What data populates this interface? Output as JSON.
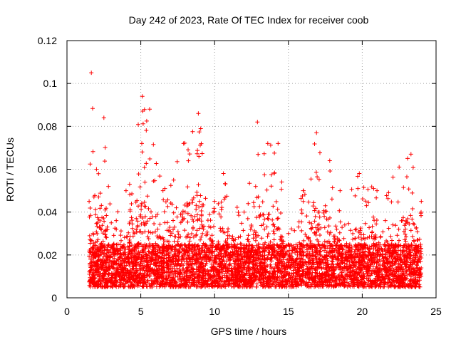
{
  "chart_data": {
    "type": "scatter",
    "title": "Day 242 of 2023, Rate Of TEC Index for receiver coob",
    "xlabel": "GPS time / hours",
    "ylabel": "ROTI / TECUs",
    "xlim": [
      0,
      25
    ],
    "ylim": [
      0,
      0.12
    ],
    "x_ticks": [
      0,
      5,
      10,
      15,
      20,
      25
    ],
    "x_tick_labels": [
      "0",
      "5",
      "10",
      "15",
      "20",
      "25"
    ],
    "y_ticks": [
      0,
      0.02,
      0.04,
      0.06,
      0.08,
      0.1,
      0.12
    ],
    "y_tick_labels": [
      "0",
      "0.02",
      "0.04",
      "0.06",
      "0.08",
      "0.1",
      "0.12"
    ],
    "grid": true,
    "marker": "plus",
    "marker_color": "#ff0000",
    "data_x_range": [
      1.5,
      24.0
    ],
    "baseline_band": [
      0.005,
      0.025
    ],
    "envelope": [
      {
        "x": 1.5,
        "y": 0.045
      },
      {
        "x": 1.65,
        "y": 0.105
      },
      {
        "x": 2.0,
        "y": 0.06
      },
      {
        "x": 2.5,
        "y": 0.084
      },
      {
        "x": 3.0,
        "y": 0.035
      },
      {
        "x": 4.0,
        "y": 0.05
      },
      {
        "x": 5.1,
        "y": 0.094
      },
      {
        "x": 5.6,
        "y": 0.088
      },
      {
        "x": 6.5,
        "y": 0.05
      },
      {
        "x": 7.9,
        "y": 0.072
      },
      {
        "x": 8.9,
        "y": 0.086
      },
      {
        "x": 10.0,
        "y": 0.045
      },
      {
        "x": 10.6,
        "y": 0.058
      },
      {
        "x": 12.0,
        "y": 0.04
      },
      {
        "x": 12.9,
        "y": 0.082
      },
      {
        "x": 13.6,
        "y": 0.072
      },
      {
        "x": 14.3,
        "y": 0.072
      },
      {
        "x": 15.0,
        "y": 0.03
      },
      {
        "x": 16.0,
        "y": 0.05
      },
      {
        "x": 16.9,
        "y": 0.077
      },
      {
        "x": 17.8,
        "y": 0.064
      },
      {
        "x": 18.5,
        "y": 0.05
      },
      {
        "x": 19.8,
        "y": 0.058
      },
      {
        "x": 21.0,
        "y": 0.05
      },
      {
        "x": 22.5,
        "y": 0.061
      },
      {
        "x": 23.3,
        "y": 0.067
      },
      {
        "x": 24.0,
        "y": 0.045
      }
    ]
  }
}
